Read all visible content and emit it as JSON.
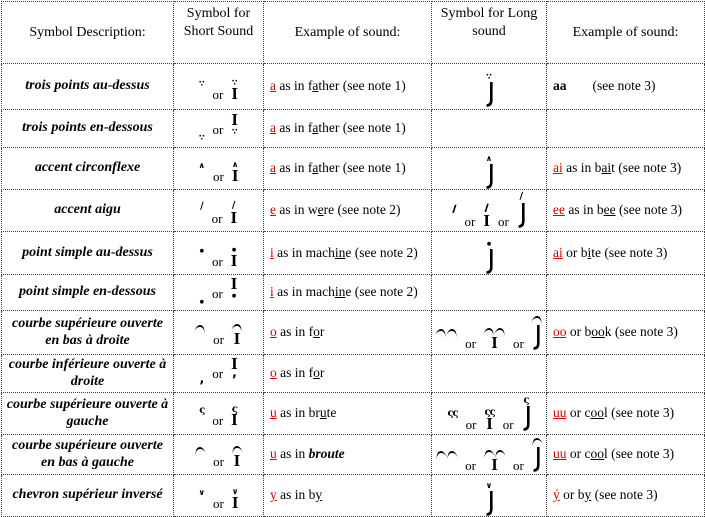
{
  "or_label": "or",
  "bar_glyph": "I",
  "accent_color": "#d40000",
  "marks": {
    "dots3": "∵",
    "circ": "∧",
    "caron": "∨",
    "acute": "∕",
    "acute2": "∕∕",
    "dot": "●",
    "curlL": "ς",
    "curlL2": "ςς",
    "underR": "‚",
    "arcR": "",
    "arcR2": "",
    "arcL": "",
    "arcL2": ""
  },
  "table": {
    "headers": [
      "Symbol Description:",
      "Symbol for Short Sound",
      "Example of sound:",
      "Symbol for Long sound",
      "Example of sound:"
    ],
    "rows": [
      {
        "description": "trois points au-dessus",
        "short_symbol": [
          {
            "k": "mark",
            "m": "dots3",
            "p": "a"
          },
          {
            "k": "or"
          },
          {
            "k": "bar",
            "m": "dots3",
            "p": "a"
          }
        ],
        "short_example": [
          {
            "t": "a",
            "f": "ru"
          },
          {
            "t": " as in f"
          },
          {
            "t": "a",
            "f": "u"
          },
          {
            "t": "ther (see note 1)"
          }
        ],
        "long_symbol": [
          {
            "k": "longbar",
            "m": "dots3"
          }
        ],
        "long_example": [
          {
            "t": "aa",
            "f": "b"
          },
          {
            "t": "(see note 3)",
            "f": "g"
          }
        ]
      },
      {
        "description": "trois points en-dessous",
        "short_symbol": [
          {
            "k": "mark",
            "m": "dots3",
            "p": "b"
          },
          {
            "k": "or"
          },
          {
            "k": "bar",
            "m": "dots3",
            "p": "b"
          }
        ],
        "short_example": [
          {
            "t": "a",
            "f": "ru"
          },
          {
            "t": " as in f"
          },
          {
            "t": "a",
            "f": "u"
          },
          {
            "t": "ther (see note 1)"
          }
        ],
        "long_symbol": [],
        "long_example": []
      },
      {
        "description": "accent circonflexe",
        "short_symbol": [
          {
            "k": "mark",
            "m": "circ",
            "p": "a"
          },
          {
            "k": "or"
          },
          {
            "k": "bar",
            "m": "circ",
            "p": "a"
          }
        ],
        "short_example": [
          {
            "t": "a",
            "f": "ru"
          },
          {
            "t": " as in f"
          },
          {
            "t": "a",
            "f": "u"
          },
          {
            "t": "ther (see note 1)"
          }
        ],
        "long_symbol": [
          {
            "k": "longbar",
            "m": "circ"
          }
        ],
        "long_example": [
          {
            "t": "ai",
            "f": "ru"
          },
          {
            "t": " as in b"
          },
          {
            "t": "ai",
            "f": "u"
          },
          {
            "t": "t (see note 3)"
          }
        ]
      },
      {
        "description": "accent aigu",
        "short_symbol": [
          {
            "k": "mark",
            "m": "acute",
            "p": "a"
          },
          {
            "k": "or"
          },
          {
            "k": "bar",
            "m": "acute",
            "p": "a"
          }
        ],
        "short_example": [
          {
            "t": "e",
            "f": "ru"
          },
          {
            "t": " as in w"
          },
          {
            "t": "e",
            "f": "u"
          },
          {
            "t": "re (see note 2)"
          }
        ],
        "long_symbol": [
          {
            "k": "mark",
            "m": "acute2",
            "p": "a"
          },
          {
            "k": "or"
          },
          {
            "k": "bar",
            "m": "acute2",
            "p": "a"
          },
          {
            "k": "or"
          },
          {
            "k": "longbar",
            "m": "acute"
          }
        ],
        "long_example": [
          {
            "t": "ee",
            "f": "ru"
          },
          {
            "t": " as in b"
          },
          {
            "t": "ee",
            "f": "u"
          },
          {
            "t": " (see note 3)"
          }
        ]
      },
      {
        "description": "point simple au-dessus",
        "short_symbol": [
          {
            "k": "mark",
            "m": "dot",
            "p": "a"
          },
          {
            "k": "or"
          },
          {
            "k": "bar",
            "m": "dot",
            "p": "a"
          }
        ],
        "short_example": [
          {
            "t": "i",
            "f": "ru"
          },
          {
            "t": " as in mach"
          },
          {
            "t": "in",
            "f": "u"
          },
          {
            "t": "e (see note 2)"
          }
        ],
        "long_symbol": [
          {
            "k": "longbar",
            "m": "dot"
          }
        ],
        "long_example": [
          {
            "t": "ai",
            "f": "ru"
          },
          {
            "t": " or b"
          },
          {
            "t": "i",
            "f": "u"
          },
          {
            "t": "te (see note 3)"
          }
        ]
      },
      {
        "description": "point simple en-dessous",
        "short_symbol": [
          {
            "k": "mark",
            "m": "dot",
            "p": "b"
          },
          {
            "k": "or"
          },
          {
            "k": "bar",
            "m": "dot",
            "p": "b"
          }
        ],
        "short_example": [
          {
            "t": "i",
            "f": "ru"
          },
          {
            "t": " as in mach"
          },
          {
            "t": "in",
            "f": "u"
          },
          {
            "t": "e (see note 2)"
          }
        ],
        "long_symbol": [],
        "long_example": []
      },
      {
        "description": "courbe supérieure ouverte en bas à droite",
        "short_symbol": [
          {
            "k": "mark",
            "m": "arcR",
            "p": "a"
          },
          {
            "k": "or"
          },
          {
            "k": "bar",
            "m": "arcR",
            "p": "a"
          }
        ],
        "short_example": [
          {
            "t": "o",
            "f": "ru"
          },
          {
            "t": " as in f"
          },
          {
            "t": "o",
            "f": "u"
          },
          {
            "t": "r"
          }
        ],
        "long_symbol": [
          {
            "k": "mark",
            "m": "arcR2",
            "p": "a"
          },
          {
            "k": "or"
          },
          {
            "k": "bar",
            "m": "arcR2",
            "p": "a"
          },
          {
            "k": "or"
          },
          {
            "k": "longbar",
            "m": "arcR"
          }
        ],
        "long_example": [
          {
            "t": "oo",
            "f": "ru"
          },
          {
            "t": " or b"
          },
          {
            "t": "oo",
            "f": "u"
          },
          {
            "t": "k (see note 3)"
          }
        ]
      },
      {
        "description": "courbe inférieure ouverte à droite",
        "short_symbol": [
          {
            "k": "mark",
            "m": "underR",
            "p": "b"
          },
          {
            "k": "or"
          },
          {
            "k": "bar",
            "m": "underR",
            "p": "b"
          }
        ],
        "short_example": [
          {
            "t": "o",
            "f": "ru"
          },
          {
            "t": " as in f"
          },
          {
            "t": "o",
            "f": "u"
          },
          {
            "t": "r"
          }
        ],
        "long_symbol": [],
        "long_example": []
      },
      {
        "description": "courbe supérieure ouverte à gauche",
        "short_symbol": [
          {
            "k": "mark",
            "m": "curlL",
            "p": "a"
          },
          {
            "k": "or"
          },
          {
            "k": "bar",
            "m": "curlL",
            "p": "a"
          }
        ],
        "short_example": [
          {
            "t": "u",
            "f": "ru"
          },
          {
            "t": " as in br"
          },
          {
            "t": "u",
            "f": "u"
          },
          {
            "t": "te"
          }
        ],
        "long_symbol": [
          {
            "k": "mark",
            "m": "curlL2",
            "p": "a"
          },
          {
            "k": "or"
          },
          {
            "k": "bar",
            "m": "curlL2",
            "p": "a"
          },
          {
            "k": "or"
          },
          {
            "k": "longbar",
            "m": "curlL"
          }
        ],
        "long_example": [
          {
            "t": "uu",
            "f": "ru"
          },
          {
            "t": " or c"
          },
          {
            "t": "oo",
            "f": "u"
          },
          {
            "t": "l (see note 3)"
          }
        ]
      },
      {
        "description": "courbe supérieure ouverte en bas à gauche",
        "short_symbol": [
          {
            "k": "mark",
            "m": "arcL",
            "p": "a"
          },
          {
            "k": "or"
          },
          {
            "k": "bar",
            "m": "arcL",
            "p": "a"
          }
        ],
        "short_example": [
          {
            "t": "u",
            "f": "ru"
          },
          {
            "t": " as in "
          },
          {
            "t": "broute",
            "f": "bi"
          }
        ],
        "long_symbol": [
          {
            "k": "mark",
            "m": "arcL2",
            "p": "a"
          },
          {
            "k": "or"
          },
          {
            "k": "bar",
            "m": "arcL2",
            "p": "a"
          },
          {
            "k": "or"
          },
          {
            "k": "longbar",
            "m": "arcL"
          }
        ],
        "long_example": [
          {
            "t": "uu",
            "f": "ru"
          },
          {
            "t": " or c"
          },
          {
            "t": "oo",
            "f": "u"
          },
          {
            "t": "l (see note 3)"
          }
        ]
      },
      {
        "description": "chevron supérieur inversé",
        "short_symbol": [
          {
            "k": "mark",
            "m": "caron",
            "p": "a"
          },
          {
            "k": "or"
          },
          {
            "k": "bar",
            "m": "caron",
            "p": "a"
          }
        ],
        "short_example": [
          {
            "t": "y",
            "f": "ru"
          },
          {
            "t": " as in b"
          },
          {
            "t": "y",
            "f": "u"
          }
        ],
        "long_symbol": [
          {
            "k": "longbar",
            "m": "caron"
          }
        ],
        "long_example": [
          {
            "t": "ý",
            "f": "ru"
          },
          {
            "t": " or b"
          },
          {
            "t": "y",
            "f": "u"
          },
          {
            "t": " (see note 3)"
          }
        ]
      }
    ]
  }
}
